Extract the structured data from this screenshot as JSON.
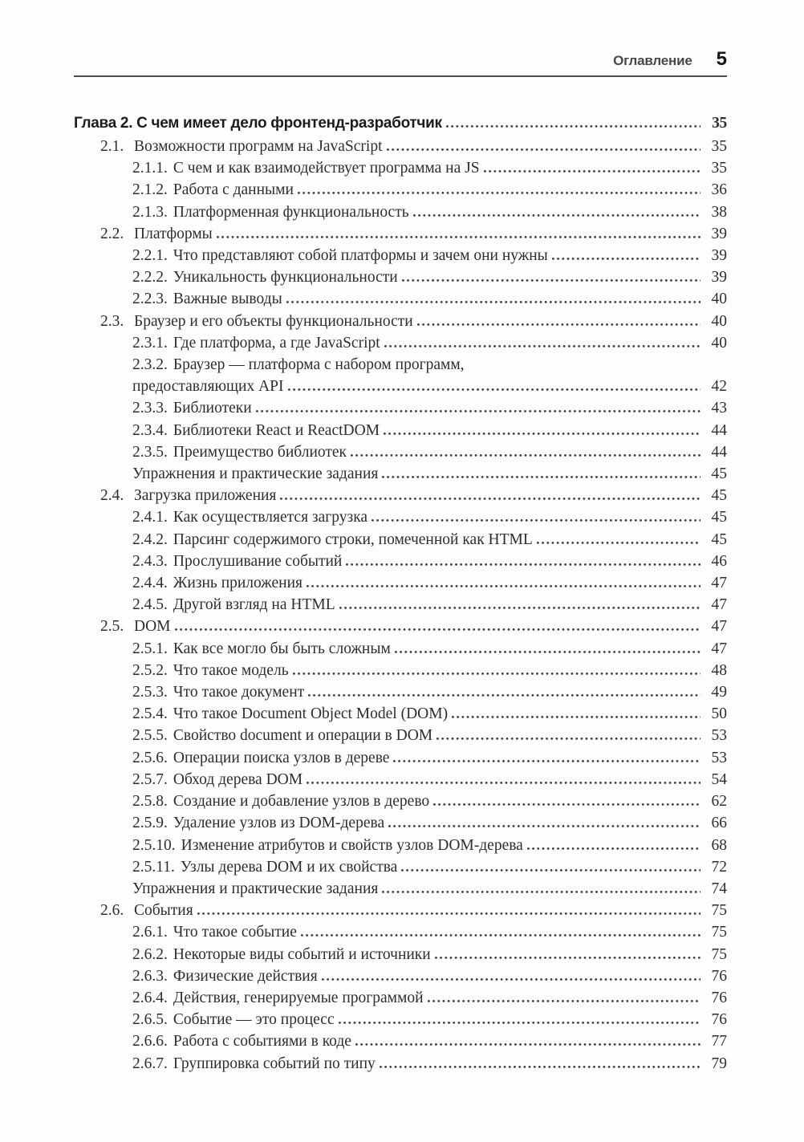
{
  "header": {
    "running_title": "Оглавление",
    "page_number": "5"
  },
  "colors": {
    "text": "#2e2e2e",
    "rule": "#4d4d4d",
    "background": "#fefefe"
  },
  "toc": {
    "entries": [
      {
        "level": 0,
        "chapter": true,
        "number": "",
        "title": "Глава 2. С чем имеет дело фронтенд-разработчик",
        "page": "35"
      },
      {
        "level": 1,
        "number": "2.1.",
        "title": "Возможности программ на JavaScript",
        "page": "35"
      },
      {
        "level": 2,
        "number": "2.1.1.",
        "title": "С чем и как взаимодействует программа на JS",
        "page": "35"
      },
      {
        "level": 2,
        "number": "2.1.2.",
        "title": "Работа с данными",
        "page": "36"
      },
      {
        "level": 2,
        "number": "2.1.3.",
        "title": "Платформенная функциональность",
        "page": "38"
      },
      {
        "level": 1,
        "number": "2.2.",
        "title": "Платформы",
        "page": "39"
      },
      {
        "level": 2,
        "number": "2.2.1.",
        "title": "Что представляют собой платформы и зачем они нужны",
        "page": "39"
      },
      {
        "level": 2,
        "number": "2.2.2.",
        "title": "Уникальность функциональности",
        "page": "39"
      },
      {
        "level": 2,
        "number": "2.2.3.",
        "title": "Важные выводы",
        "page": "40"
      },
      {
        "level": 1,
        "number": "2.3.",
        "title": "Браузер и его объекты функциональности",
        "page": "40"
      },
      {
        "level": 2,
        "number": "2.3.1.",
        "title": "Где платформа, а где JavaScript",
        "page": "40"
      },
      {
        "level": 2,
        "number": "2.3.2.",
        "title": "Браузер — платформа с набором программ,",
        "page": "",
        "no_leader": true
      },
      {
        "level": 2,
        "number": "",
        "title": "предоставляющих API",
        "page": "42"
      },
      {
        "level": 2,
        "number": "2.3.3.",
        "title": "Библиотеки",
        "page": "43"
      },
      {
        "level": 2,
        "number": "2.3.4.",
        "title": "Библиотеки React и ReactDOM",
        "page": "44"
      },
      {
        "level": 2,
        "number": "2.3.5.",
        "title": "Преимущество библиотек",
        "page": "44"
      },
      {
        "level": 2,
        "number": "",
        "title": "Упражнения и практические задания",
        "page": "45"
      },
      {
        "level": 1,
        "number": "2.4.",
        "title": "Загрузка приложения",
        "page": "45"
      },
      {
        "level": 2,
        "number": "2.4.1.",
        "title": "Как осуществляется загрузка",
        "page": "45"
      },
      {
        "level": 2,
        "number": "2.4.2.",
        "title": "Парсинг содержимого строки, помеченной как HTML",
        "page": "45"
      },
      {
        "level": 2,
        "number": "2.4.3.",
        "title": "Прослушивание событий",
        "page": "46"
      },
      {
        "level": 2,
        "number": "2.4.4.",
        "title": "Жизнь приложения",
        "page": "47"
      },
      {
        "level": 2,
        "number": "2.4.5.",
        "title": "Другой взгляд на HTML",
        "page": "47"
      },
      {
        "level": 1,
        "number": "2.5.",
        "title": "DOM",
        "page": "47"
      },
      {
        "level": 2,
        "number": "2.5.1.",
        "title": "Как все могло бы быть сложным",
        "page": "47"
      },
      {
        "level": 2,
        "number": "2.5.2.",
        "title": "Что такое модель",
        "page": "48"
      },
      {
        "level": 2,
        "number": "2.5.3.",
        "title": "Что такое документ",
        "page": "49"
      },
      {
        "level": 2,
        "number": "2.5.4.",
        "title": "Что такое Document Object Model (DOM)",
        "page": "50"
      },
      {
        "level": 2,
        "number": "2.5.5.",
        "title": "Свойство document и операции в DOM",
        "page": "53"
      },
      {
        "level": 2,
        "number": "2.5.6.",
        "title": "Операции поиска узлов в дереве",
        "page": "53"
      },
      {
        "level": 2,
        "number": "2.5.7.",
        "title": "Обход дерева DOM",
        "page": "54"
      },
      {
        "level": 2,
        "number": "2.5.8.",
        "title": "Создание и добавление узлов в дерево",
        "page": "62"
      },
      {
        "level": 2,
        "number": "2.5.9.",
        "title": "Удаление узлов из DOM-дерева",
        "page": "66"
      },
      {
        "level": 2,
        "number": "2.5.10.",
        "title": "Изменение атрибутов и свойств узлов DOM-дерева",
        "page": "68"
      },
      {
        "level": 2,
        "number": "2.5.11.",
        "title": "Узлы дерева DOM и их свойства",
        "page": "72"
      },
      {
        "level": 2,
        "number": "",
        "title": "Упражнения и практические задания",
        "page": "74"
      },
      {
        "level": 1,
        "number": "2.6.",
        "title": "События",
        "page": "75"
      },
      {
        "level": 2,
        "number": "2.6.1.",
        "title": "Что такое событие",
        "page": "75"
      },
      {
        "level": 2,
        "number": "2.6.2.",
        "title": "Некоторые виды событий и источники",
        "page": "75"
      },
      {
        "level": 2,
        "number": "2.6.3.",
        "title": "Физические действия",
        "page": "76"
      },
      {
        "level": 2,
        "number": "2.6.4.",
        "title": "Действия, генерируемые программой",
        "page": "76"
      },
      {
        "level": 2,
        "number": "2.6.5.",
        "title": "Событие — это процесс",
        "page": "76"
      },
      {
        "level": 2,
        "number": "2.6.6.",
        "title": "Работа с событиями в коде",
        "page": "77"
      },
      {
        "level": 2,
        "number": "2.6.7.",
        "title": "Группировка событий по типу",
        "page": "79"
      }
    ]
  }
}
